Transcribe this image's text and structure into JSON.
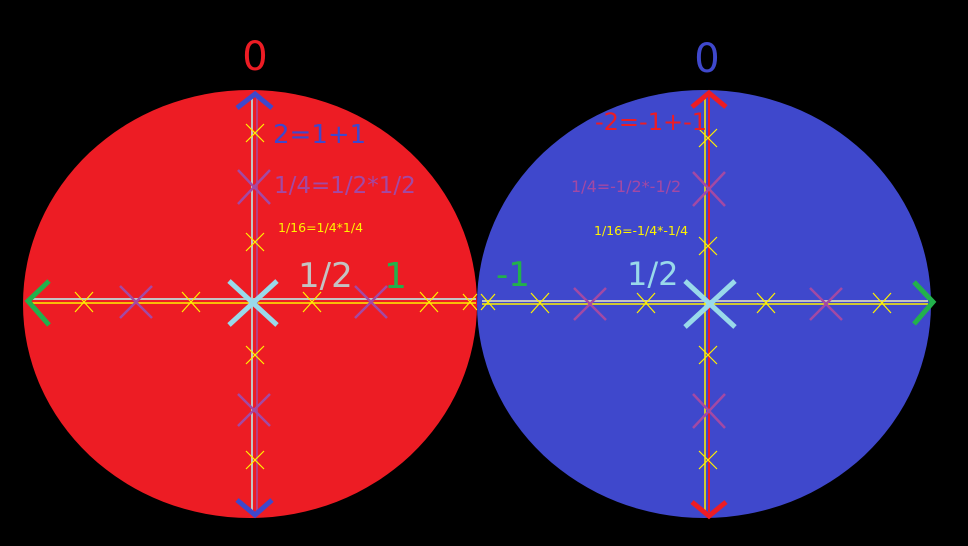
{
  "colors": {
    "background": "#000000",
    "red": "#ed1c24",
    "blue": "#3f48cc",
    "purple": "#a349a4",
    "yellow": "#fff200",
    "green": "#22b14c",
    "lightblue": "#99d9ea",
    "lightgray": "#c3c3c3"
  },
  "left": {
    "label_zero": "0",
    "label_sum": "2=1+1",
    "label_product_quarter": "1/4=1/2*1/2",
    "label_product_sixteenth": "1/16=1/4*1/4",
    "label_half": "1/2",
    "label_one": "1"
  },
  "right": {
    "label_zero": "0",
    "label_sum": "-2=-1+-1",
    "label_product_quarter": "1/4=-1/2*-1/2",
    "label_product_sixteenth": "1/16=-1/4*-1/4",
    "label_half": "1/2",
    "label_neg_one": "-1"
  }
}
